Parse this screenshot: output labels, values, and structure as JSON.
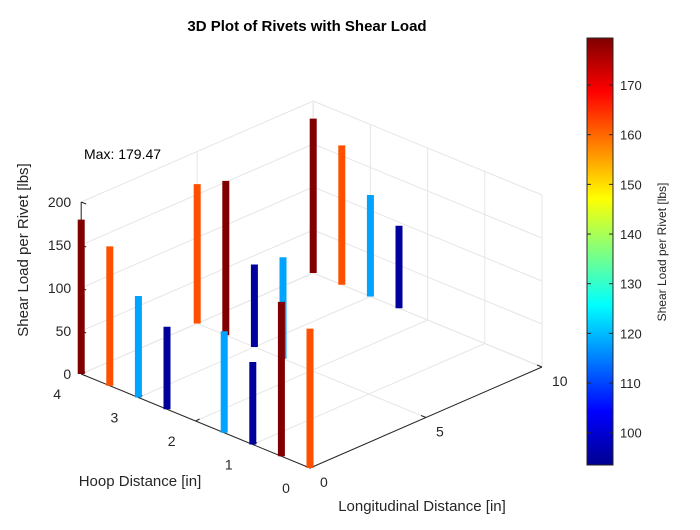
{
  "chart_data": {
    "type": "bar3d",
    "title": "3D Plot of Rivets with Shear Load",
    "xlabel": "Longitudinal Distance [in]",
    "ylabel": "Hoop Distance [in]",
    "zlabel": "Shear Load per Rivet [lbs]",
    "xlim": [
      0,
      10
    ],
    "ylim": [
      0,
      4
    ],
    "zlim": [
      0,
      200
    ],
    "xticks": [
      "0",
      "5",
      "10"
    ],
    "yticks": [
      "0",
      "1",
      "2",
      "3",
      "4"
    ],
    "zticks": [
      "0",
      "50",
      "100",
      "150",
      "200"
    ],
    "grid": true,
    "annotation": "Max: 179.47",
    "colorbar": {
      "label": "Shear Load per Rivet [lbs]",
      "colormap": "jet",
      "clim": [
        93.5,
        179.47
      ],
      "ticks": [
        "100",
        "110",
        "120",
        "130",
        "140",
        "150",
        "160",
        "170"
      ]
    },
    "rivets": [
      {
        "x": 0,
        "y": 4,
        "load": 179.47
      },
      {
        "x": 0,
        "y": 3.5,
        "load": 162
      },
      {
        "x": 0,
        "y": 3,
        "load": 118
      },
      {
        "x": 0,
        "y": 2.5,
        "load": 96
      },
      {
        "x": 5,
        "y": 4,
        "load": 162
      },
      {
        "x": 5,
        "y": 3.5,
        "load": 179.47
      },
      {
        "x": 5,
        "y": 3,
        "load": 96
      },
      {
        "x": 5,
        "y": 2.5,
        "load": 118
      },
      {
        "x": 10,
        "y": 4,
        "load": 179.47
      },
      {
        "x": 10,
        "y": 3.5,
        "load": 162
      },
      {
        "x": 10,
        "y": 3,
        "load": 118
      },
      {
        "x": 10,
        "y": 2.5,
        "load": 96
      },
      {
        "x": 0,
        "y": 1.5,
        "load": 118
      },
      {
        "x": 0,
        "y": 1,
        "load": 96
      },
      {
        "x": 0,
        "y": 0.5,
        "load": 179.47
      },
      {
        "x": 0,
        "y": 0,
        "load": 162
      }
    ]
  }
}
